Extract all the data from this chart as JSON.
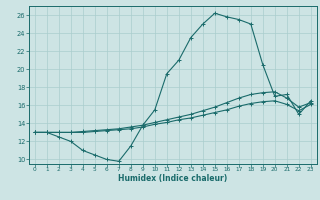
{
  "bg_color": "#cde4e4",
  "grid_color": "#aacece",
  "line_color": "#1a6b6b",
  "xlabel": "Humidex (Indice chaleur)",
  "xlim": [
    -0.5,
    23.5
  ],
  "ylim": [
    9.5,
    27
  ],
  "yticks": [
    10,
    12,
    14,
    16,
    18,
    20,
    22,
    24,
    26
  ],
  "xticks": [
    0,
    1,
    2,
    3,
    4,
    5,
    6,
    7,
    8,
    9,
    10,
    11,
    12,
    13,
    14,
    15,
    16,
    17,
    18,
    19,
    20,
    21,
    22,
    23
  ],
  "line1_x": [
    0,
    1,
    2,
    3,
    4,
    5,
    6,
    7,
    8,
    9,
    10,
    11,
    12,
    13,
    14,
    15,
    16,
    17,
    18,
    19,
    20,
    21,
    22,
    23
  ],
  "line1_y": [
    13,
    13,
    12.5,
    12,
    11,
    10.5,
    10,
    9.8,
    11.5,
    13.8,
    15.5,
    19.5,
    21,
    23.5,
    25,
    26.2,
    25.8,
    25.5,
    25,
    20.5,
    17,
    17.2,
    15,
    16.5
  ],
  "line2_x": [
    0,
    1,
    2,
    3,
    4,
    5,
    6,
    7,
    8,
    9,
    10,
    11,
    12,
    13,
    14,
    15,
    16,
    17,
    18,
    19,
    20,
    21,
    22,
    23
  ],
  "line2_y": [
    13,
    13,
    13,
    13,
    13.1,
    13.2,
    13.3,
    13.4,
    13.6,
    13.8,
    14.1,
    14.4,
    14.7,
    15.0,
    15.4,
    15.8,
    16.3,
    16.8,
    17.2,
    17.4,
    17.5,
    16.8,
    15.8,
    16.3
  ],
  "line3_x": [
    0,
    1,
    2,
    3,
    4,
    5,
    6,
    7,
    8,
    9,
    10,
    11,
    12,
    13,
    14,
    15,
    16,
    17,
    18,
    19,
    20,
    21,
    22,
    23
  ],
  "line3_y": [
    13,
    13,
    13,
    13,
    13.0,
    13.1,
    13.2,
    13.3,
    13.4,
    13.6,
    13.9,
    14.1,
    14.4,
    14.6,
    14.9,
    15.2,
    15.5,
    15.9,
    16.2,
    16.4,
    16.5,
    16.1,
    15.4,
    16.1
  ]
}
